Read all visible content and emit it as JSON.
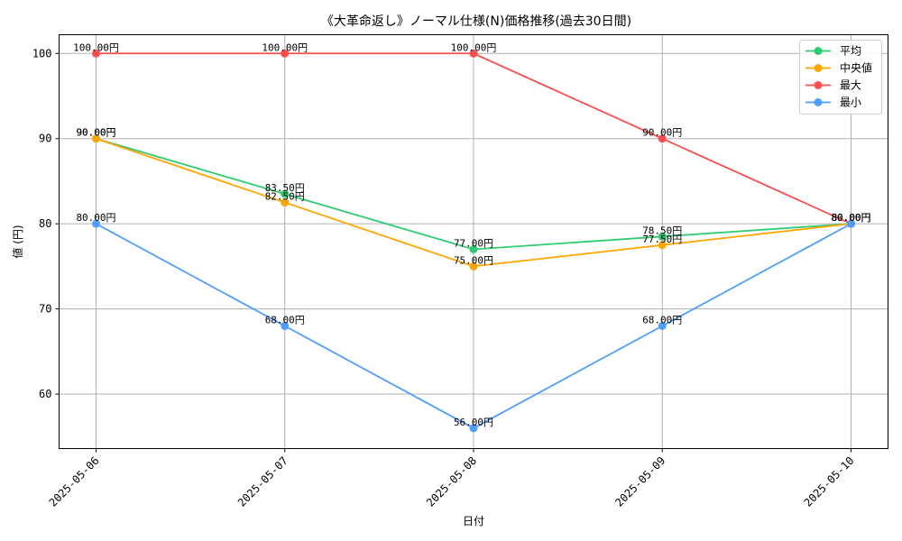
{
  "chart_data": {
    "type": "line",
    "title": "《大革命返し》ノーマル仕様(N)価格推移(過去30日間)",
    "xlabel": "日付",
    "ylabel": "値 (円)",
    "categories": [
      "2025-05-06",
      "2025-05-07",
      "2025-05-08",
      "2025-05-09",
      "2025-05-10"
    ],
    "ylim": [
      53.6,
      102.2
    ],
    "yticks": [
      60,
      70,
      80,
      90,
      100
    ],
    "grid": true,
    "legend_position": "top-right",
    "label_suffix": "円",
    "series": [
      {
        "name": "平均",
        "color": "#2ecc71",
        "values": [
          90.0,
          83.5,
          77.0,
          78.5,
          80.0
        ],
        "labels": [
          "90.00円",
          "83.50円",
          "77.00円",
          "78.50円",
          "80.00円"
        ]
      },
      {
        "name": "中央値",
        "color": "#ffa500",
        "values": [
          90.0,
          82.5,
          75.0,
          77.5,
          80.0
        ],
        "labels": [
          "90.00円",
          "82.50円",
          "75.00円",
          "77.50円",
          "80.00円"
        ]
      },
      {
        "name": "最大",
        "color": "#ff4d4d",
        "values": [
          100.0,
          100.0,
          100.0,
          90.0,
          80.0
        ],
        "labels": [
          "100.00円",
          "100.00円",
          "100.00円",
          "90.00円",
          "80.00円"
        ]
      },
      {
        "name": "最小",
        "color": "#4d9eff",
        "values": [
          80.0,
          68.0,
          56.0,
          68.0,
          80.0
        ],
        "labels": [
          "80.00円",
          "68.00円",
          "56.00円",
          "68.00円",
          "80.00円"
        ]
      }
    ]
  }
}
